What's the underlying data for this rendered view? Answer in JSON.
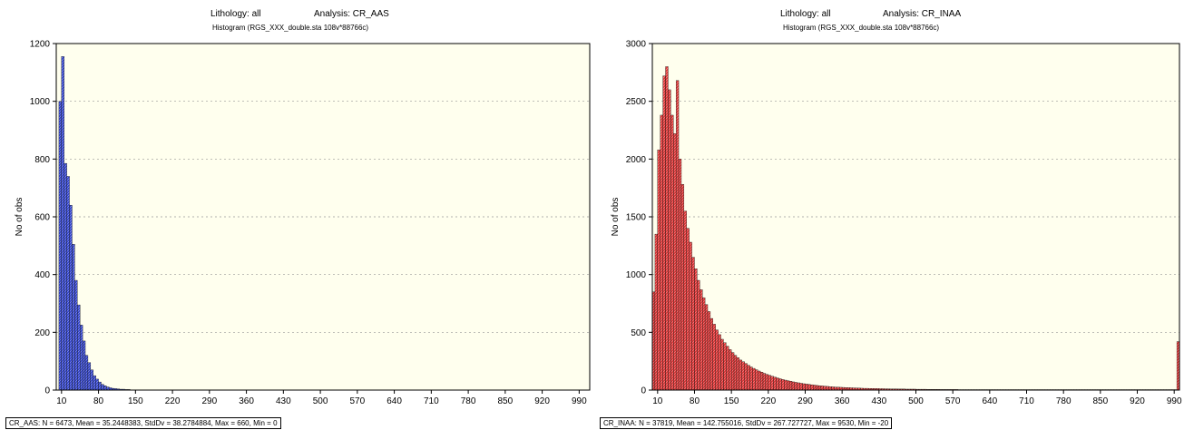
{
  "chart_data": [
    {
      "type": "bar",
      "title_lithology": "Lithology: all",
      "title_analysis": "Analysis: CR_AAS",
      "subtitle": "Histogram (RGS_XXX_double.sta 108v*88766c)",
      "ylabel": "No of obs",
      "xlabel": "",
      "ylim": [
        0,
        1200
      ],
      "yticks": [
        0,
        200,
        400,
        600,
        800,
        1000,
        1200
      ],
      "xlim": [
        0,
        1010
      ],
      "xticks": [
        10,
        80,
        150,
        220,
        290,
        360,
        430,
        500,
        570,
        640,
        710,
        780,
        850,
        920,
        990
      ],
      "bin_width": 5,
      "bin_start": 5,
      "values": [
        1000,
        1155,
        785,
        740,
        640,
        505,
        380,
        295,
        225,
        170,
        120,
        95,
        70,
        50,
        38,
        28,
        20,
        15,
        11,
        8,
        6,
        5,
        4,
        3,
        3,
        2,
        2,
        1,
        1,
        1
      ],
      "bar_color": "#3344cc",
      "plot_background": "#ffffee",
      "grid": true,
      "stats": "CR_AAS:   N = 6473, Mean = 35.2448383, StdDv = 38.2784884, Max = 660, Min = 0"
    },
    {
      "type": "bar",
      "title_lithology": "Lithology: all",
      "title_analysis": "Analysis: CR_INAA",
      "subtitle": "Histogram (RGS_XXX_double.sta 108v*88766c)",
      "ylabel": "No of obs",
      "xlabel": "",
      "ylim": [
        0,
        3000
      ],
      "yticks": [
        0,
        500,
        1000,
        1500,
        2000,
        2500,
        3000
      ],
      "xlim": [
        0,
        1000
      ],
      "xticks": [
        10,
        80,
        150,
        220,
        290,
        360,
        430,
        500,
        570,
        640,
        710,
        780,
        850,
        920,
        990
      ],
      "bin_width": 5,
      "bin_start": 0,
      "values": [
        850,
        1350,
        2080,
        2380,
        2720,
        2800,
        2600,
        2380,
        2220,
        2680,
        2000,
        1780,
        1550,
        1400,
        1280,
        1150,
        1050,
        950,
        870,
        800,
        740,
        680,
        620,
        570,
        520,
        480,
        440,
        410,
        380,
        350,
        325,
        300,
        280,
        260,
        245,
        230,
        215,
        200,
        188,
        176,
        165,
        155,
        145,
        136,
        128,
        120,
        112,
        105,
        98,
        92,
        86,
        81,
        76,
        71,
        67,
        63,
        59,
        55,
        52,
        49,
        46,
        43,
        40,
        38,
        36,
        34,
        32,
        30,
        28,
        26,
        25,
        24,
        23,
        22,
        21,
        20,
        19,
        18,
        17,
        16,
        15,
        15,
        14,
        14,
        13,
        13,
        12,
        12,
        11,
        11,
        10,
        10,
        10,
        9,
        9,
        9,
        8,
        8,
        8,
        8,
        7,
        7,
        7,
        7,
        6,
        6,
        6,
        6,
        6,
        5,
        5,
        5,
        5,
        5,
        5,
        5,
        4,
        4,
        4,
        4,
        4,
        4,
        4,
        4,
        4,
        4,
        4,
        4,
        4,
        4,
        4,
        4,
        4,
        4,
        4,
        4,
        4,
        4,
        4,
        4,
        4,
        4,
        4,
        4,
        4,
        4,
        4,
        4,
        4,
        4,
        4,
        4,
        4,
        4,
        4,
        4,
        4,
        4,
        4,
        4,
        4,
        4,
        4,
        4,
        4,
        4,
        4,
        4,
        4,
        4,
        4,
        4,
        4,
        4,
        4,
        4,
        4,
        4,
        4,
        4,
        4,
        4,
        4,
        4,
        4,
        4,
        4,
        4,
        4,
        4,
        4,
        4,
        4,
        4,
        4,
        4,
        4,
        4,
        4,
        420
      ],
      "bar_color": "#dd3333",
      "plot_background": "#ffffee",
      "grid": true,
      "stats": "CR_INAA:   N = 37819, Mean = 142.755016, StdDv = 267.727727, Max = 9530, Min = -20"
    }
  ]
}
